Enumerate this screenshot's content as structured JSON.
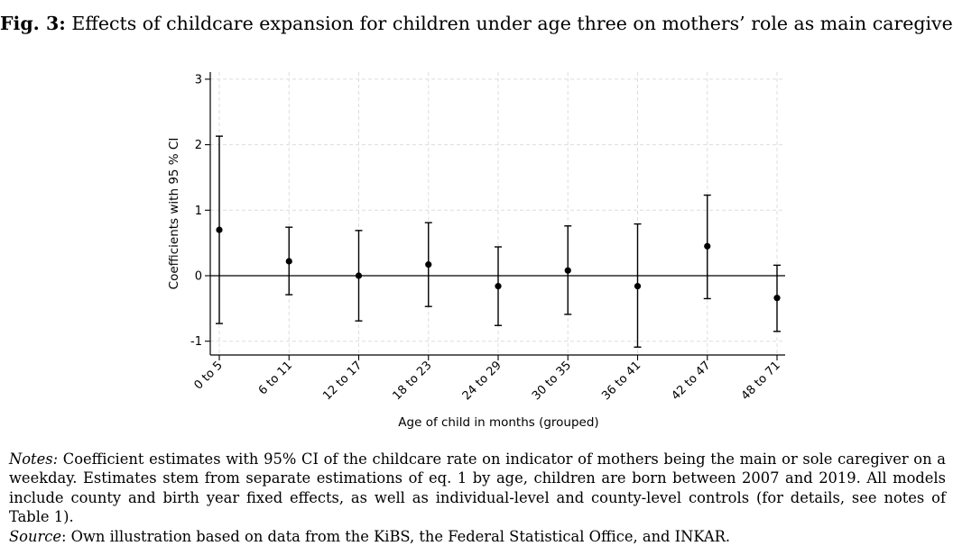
{
  "figure": {
    "label": "Fig. 3:",
    "title": "Effects of childcare expansion for children under age three on mothers’ role as main caregiver"
  },
  "chart_data": {
    "type": "scatter",
    "subtype": "coefficient plot with 95% confidence intervals",
    "xlabel": "Age of child in months (grouped)",
    "ylabel": "Coefficients with 95 % CI",
    "categories": [
      "0 to 5",
      "6 to 11",
      "12 to 17",
      "18 to 23",
      "24 to 29",
      "30 to 35",
      "36 to 41",
      "42 to 47",
      "48 to 71"
    ],
    "series": [
      {
        "values": [
          0.7,
          0.22,
          0.0,
          0.17,
          -0.16,
          0.08,
          -0.16,
          0.45,
          -0.34
        ],
        "ci_lower": [
          -0.73,
          -0.29,
          -0.69,
          -0.47,
          -0.76,
          -0.59,
          -1.09,
          -0.35,
          -0.85
        ],
        "ci_upper": [
          2.13,
          0.74,
          0.69,
          0.81,
          0.44,
          0.76,
          0.79,
          1.23,
          0.16
        ]
      }
    ],
    "yticks": [
      -1,
      0,
      1,
      2,
      3
    ],
    "ylim": [
      -1.2,
      3.15
    ],
    "reference_line": 0,
    "grid": true,
    "colors": {
      "points": "#000000",
      "grid": "#dddddd",
      "frame": "#000000"
    }
  },
  "notes": {
    "notes_label": "Notes:",
    "notes_text": " Coefficient estimates with 95% CI of the childcare rate on indicator of mothers being the main or sole caregiver on a weekday. Estimates stem from separate estimations of eq. 1 by age, children are born between 2007 and 2019. All models include county and birth year fixed effects, as well as individual-level and county-level controls (for details, see notes of Table 1).",
    "source_label": "Source",
    "source_text": ": Own illustration based on data from the KiBS, the Federal Statistical Office, and INKAR."
  }
}
